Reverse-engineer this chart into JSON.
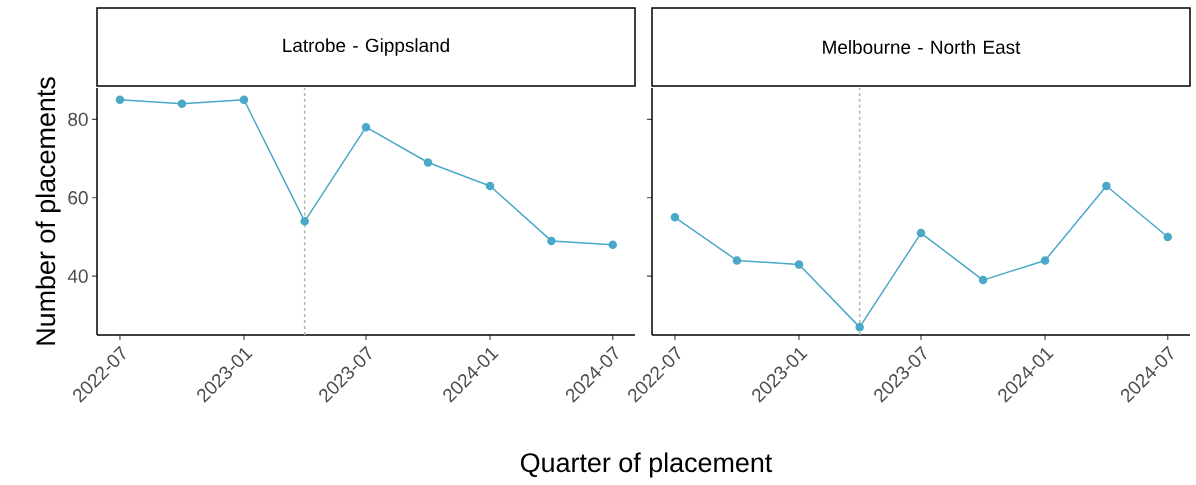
{
  "chart_data": [
    {
      "type": "line",
      "title": "Latrobe - Gippsland",
      "xlabel": "Quarter of placement",
      "ylabel": "Number of placements",
      "x": [
        "2022-07",
        "2022-10",
        "2023-01",
        "2023-04",
        "2023-07",
        "2023-10",
        "2024-01",
        "2024-04",
        "2024-07"
      ],
      "series": [
        {
          "color": "#4aa8c8",
          "values": [
            85,
            84,
            85,
            54,
            78,
            69,
            63,
            49,
            48
          ]
        }
      ],
      "xlim": [
        "2022-05-28",
        "2024-08-03"
      ],
      "ylim": [
        25,
        88
      ],
      "xticks": [
        "2022-07",
        "2023-01",
        "2023-07",
        "2024-01",
        "2024-07"
      ],
      "yticks": [
        40,
        60,
        80
      ],
      "ref_lines": [
        {
          "axis": "x",
          "value": "2023-04",
          "color": "#b3b3b3",
          "line_style": "dashed"
        }
      ],
      "marker": "circle",
      "line_style": "solid"
    },
    {
      "type": "line",
      "title": "Melbourne - North East",
      "x": [
        "2022-07",
        "2022-10",
        "2023-01",
        "2023-04",
        "2023-07",
        "2023-10",
        "2024-01",
        "2024-04",
        "2024-07"
      ],
      "series": [
        {
          "color": "#4aa8c8",
          "values": [
            55,
            44,
            43,
            27,
            51,
            39,
            44,
            63,
            50
          ]
        }
      ],
      "xlim": [
        "2022-05-28",
        "2024-08-03"
      ],
      "ylim": [
        25,
        88
      ],
      "xticks": [
        "2022-07",
        "2023-01",
        "2023-07",
        "2024-01",
        "2024-07"
      ],
      "yticks": [
        40,
        60,
        80
      ],
      "ref_lines": [
        {
          "axis": "x",
          "value": "2023-04",
          "color": "#b3b3b3",
          "line_style": "dashed"
        }
      ],
      "marker": "circle",
      "line_style": "solid",
      "tick_labels": "x"
    }
  ]
}
